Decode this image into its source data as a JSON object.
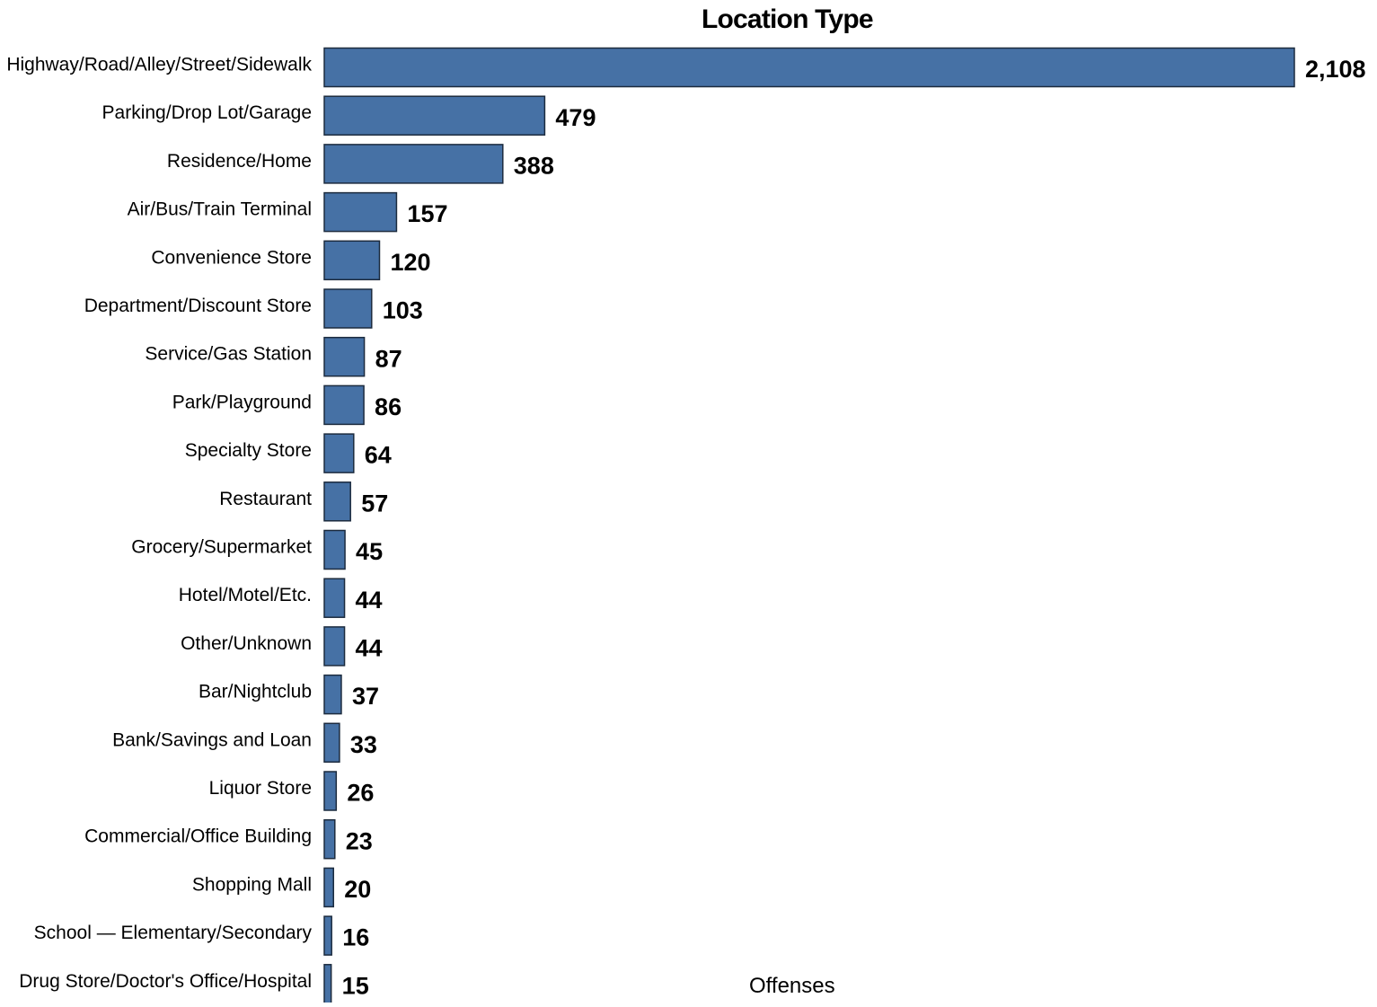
{
  "chart_data": {
    "type": "bar",
    "orientation": "horizontal",
    "title": "Location Type",
    "xlabel": "Offenses",
    "ylabel": "",
    "grid": false,
    "legend": "none",
    "xlim": [
      0,
      2108
    ],
    "categories": [
      "Highway/Road/Alley/Street/Sidewalk",
      "Parking/Drop Lot/Garage",
      "Residence/Home",
      "Air/Bus/Train Terminal",
      "Convenience Store",
      "Department/Discount Store",
      "Service/Gas Station",
      "Park/Playground",
      "Specialty Store",
      "Restaurant",
      "Grocery/Supermarket",
      "Hotel/Motel/Etc.",
      "Other/Unknown",
      "Bar/Nightclub",
      "Bank/Savings and Loan",
      "Liquor Store",
      "Commercial/Office Building",
      "Shopping Mall",
      "School — Elementary/Secondary",
      "Drug Store/Doctor's Office/Hospital"
    ],
    "values": [
      2108,
      479,
      388,
      157,
      120,
      103,
      87,
      86,
      64,
      57,
      45,
      44,
      44,
      37,
      33,
      26,
      23,
      20,
      16,
      15
    ],
    "value_labels": [
      "2,108",
      "479",
      "388",
      "157",
      "120",
      "103",
      "87",
      "86",
      "64",
      "57",
      "45",
      "44",
      "44",
      "37",
      "33",
      "26",
      "23",
      "20",
      "16",
      "15"
    ],
    "colors": {
      "bar_fill": "#4671a5",
      "bar_stroke": "#1c2b3e",
      "text": "#000000"
    }
  }
}
